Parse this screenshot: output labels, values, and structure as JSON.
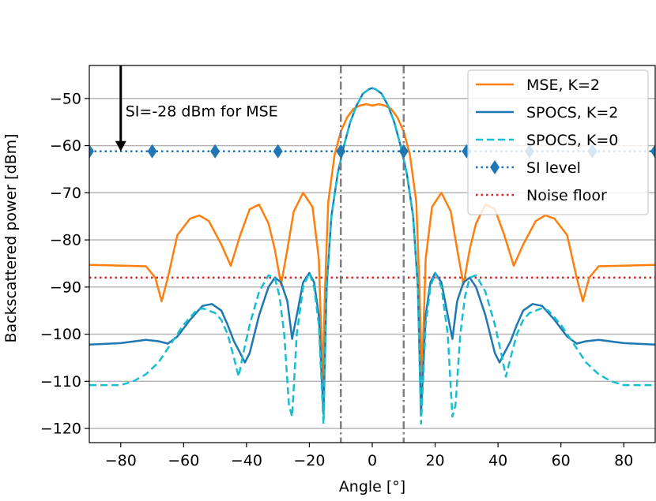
{
  "chart_data": {
    "type": "line",
    "title": "",
    "xlabel": "Angle [°]",
    "ylabel": "Backscattered power [dBm]",
    "xlim": [
      -90,
      90
    ],
    "ylim": [
      -123,
      -43
    ],
    "x_ticks": [
      -80,
      -60,
      -40,
      -20,
      0,
      20,
      40,
      60,
      80
    ],
    "x_tick_labels": [
      "−80",
      "−60",
      "−40",
      "−20",
      "0",
      "20",
      "40",
      "60",
      "80"
    ],
    "y_ticks": [
      -50,
      -60,
      -70,
      -80,
      -90,
      -100,
      -110,
      -120
    ],
    "y_tick_labels": [
      "−50",
      "−60",
      "−70",
      "−80",
      "−90",
      "−100",
      "−110",
      "−120"
    ],
    "grid": "horizontal",
    "legend_position": "top-right",
    "colors": {
      "mse": "#ff7f0e",
      "spocs2": "#1f77b4",
      "spocs0": "#17becf",
      "si": "#1f77b4",
      "noise": "#d62728",
      "vline": "#7f7f7f"
    },
    "series": [
      {
        "name": "MSE,     K=2",
        "style": "solid",
        "x": [
          -90,
          -72,
          -69,
          -67,
          -65,
          -62,
          -58,
          -55,
          -52,
          -48,
          -45,
          -42,
          -39,
          -36,
          -33,
          -31,
          -29,
          -27,
          -25,
          -22,
          -19,
          -17,
          -15.8,
          -15,
          -14,
          -12,
          -10,
          -8,
          -6,
          -4,
          -2,
          0
        ],
        "y": [
          -85.3,
          -85.6,
          -88,
          -93,
          -88,
          -79,
          -75.5,
          -74.8,
          -76,
          -81,
          -85.5,
          -79,
          -73.5,
          -72.5,
          -76.5,
          -82,
          -89.5,
          -82,
          -74,
          -70,
          -73,
          -84,
          -109.5,
          -90,
          -72,
          -62,
          -57,
          -54,
          -52.2,
          -51.5,
          -51.2,
          -51.5
        ]
      },
      {
        "name": "SPOCS, K=2",
        "style": "solid",
        "x": [
          -90,
          -80,
          -72,
          -68,
          -65,
          -62,
          -58,
          -54,
          -51,
          -48,
          -46,
          -44,
          -42,
          -40.5,
          -39,
          -36,
          -33,
          -31,
          -29,
          -27,
          -25.5,
          -24,
          -22,
          -20,
          -18.5,
          -17,
          -15.5,
          -14.5,
          -13,
          -11,
          -9,
          -7,
          -5,
          -3,
          -1,
          0
        ],
        "y": [
          -102.2,
          -101.9,
          -101.2,
          -101.5,
          -102,
          -100.5,
          -97,
          -94,
          -93.6,
          -95,
          -98,
          -101.5,
          -104,
          -106,
          -104,
          -96,
          -90,
          -88,
          -89,
          -93,
          -101,
          -96,
          -89,
          -87,
          -89,
          -96,
          -117,
          -90,
          -75,
          -66,
          -60,
          -55,
          -51.5,
          -49,
          -48,
          -47.8
        ]
      },
      {
        "name": "SPOCS, K=0",
        "style": "dashed",
        "x": [
          -90,
          -80,
          -76,
          -72,
          -68,
          -64,
          -60,
          -56,
          -54,
          -50,
          -48,
          -46,
          -44,
          -42.5,
          -41,
          -39,
          -36,
          -33,
          -31,
          -29.5,
          -28,
          -26.5,
          -25.5,
          -24,
          -22,
          -20,
          -18.5,
          -17,
          -15.5,
          -14.5,
          -13,
          -11,
          -9,
          -7,
          -5,
          -3,
          -1,
          0
        ],
        "y": [
          -110.8,
          -110.8,
          -110,
          -108.5,
          -106,
          -102,
          -98,
          -95,
          -94.5,
          -95.5,
          -97,
          -100,
          -105,
          -109,
          -104,
          -98,
          -91,
          -87.5,
          -88,
          -92,
          -100,
          -115,
          -117.5,
          -100,
          -90,
          -87,
          -90,
          -98,
          -119,
          -90,
          -75,
          -66,
          -60,
          -55,
          -51.5,
          -49,
          -48,
          -47.8
        ]
      }
    ],
    "hlines": [
      {
        "name": "SI level",
        "y": -61.2,
        "style": "dotted",
        "marker": "diamond",
        "marker_x": [
          -90,
          -70,
          -50,
          -30,
          -10,
          10,
          30,
          50,
          70,
          90
        ]
      },
      {
        "name": "Noise floor",
        "y": -88,
        "style": "dotted"
      }
    ],
    "vlines": [
      {
        "x": -10,
        "style": "dashdot"
      },
      {
        "x": 10,
        "style": "dashdot"
      }
    ],
    "annotation": {
      "text": "SI=-28 dBm for MSE",
      "arrow_x": -80,
      "arrow_y_from": -43,
      "arrow_y_to": -61.2,
      "text_x": -78.5,
      "text_y": -53.8
    }
  }
}
